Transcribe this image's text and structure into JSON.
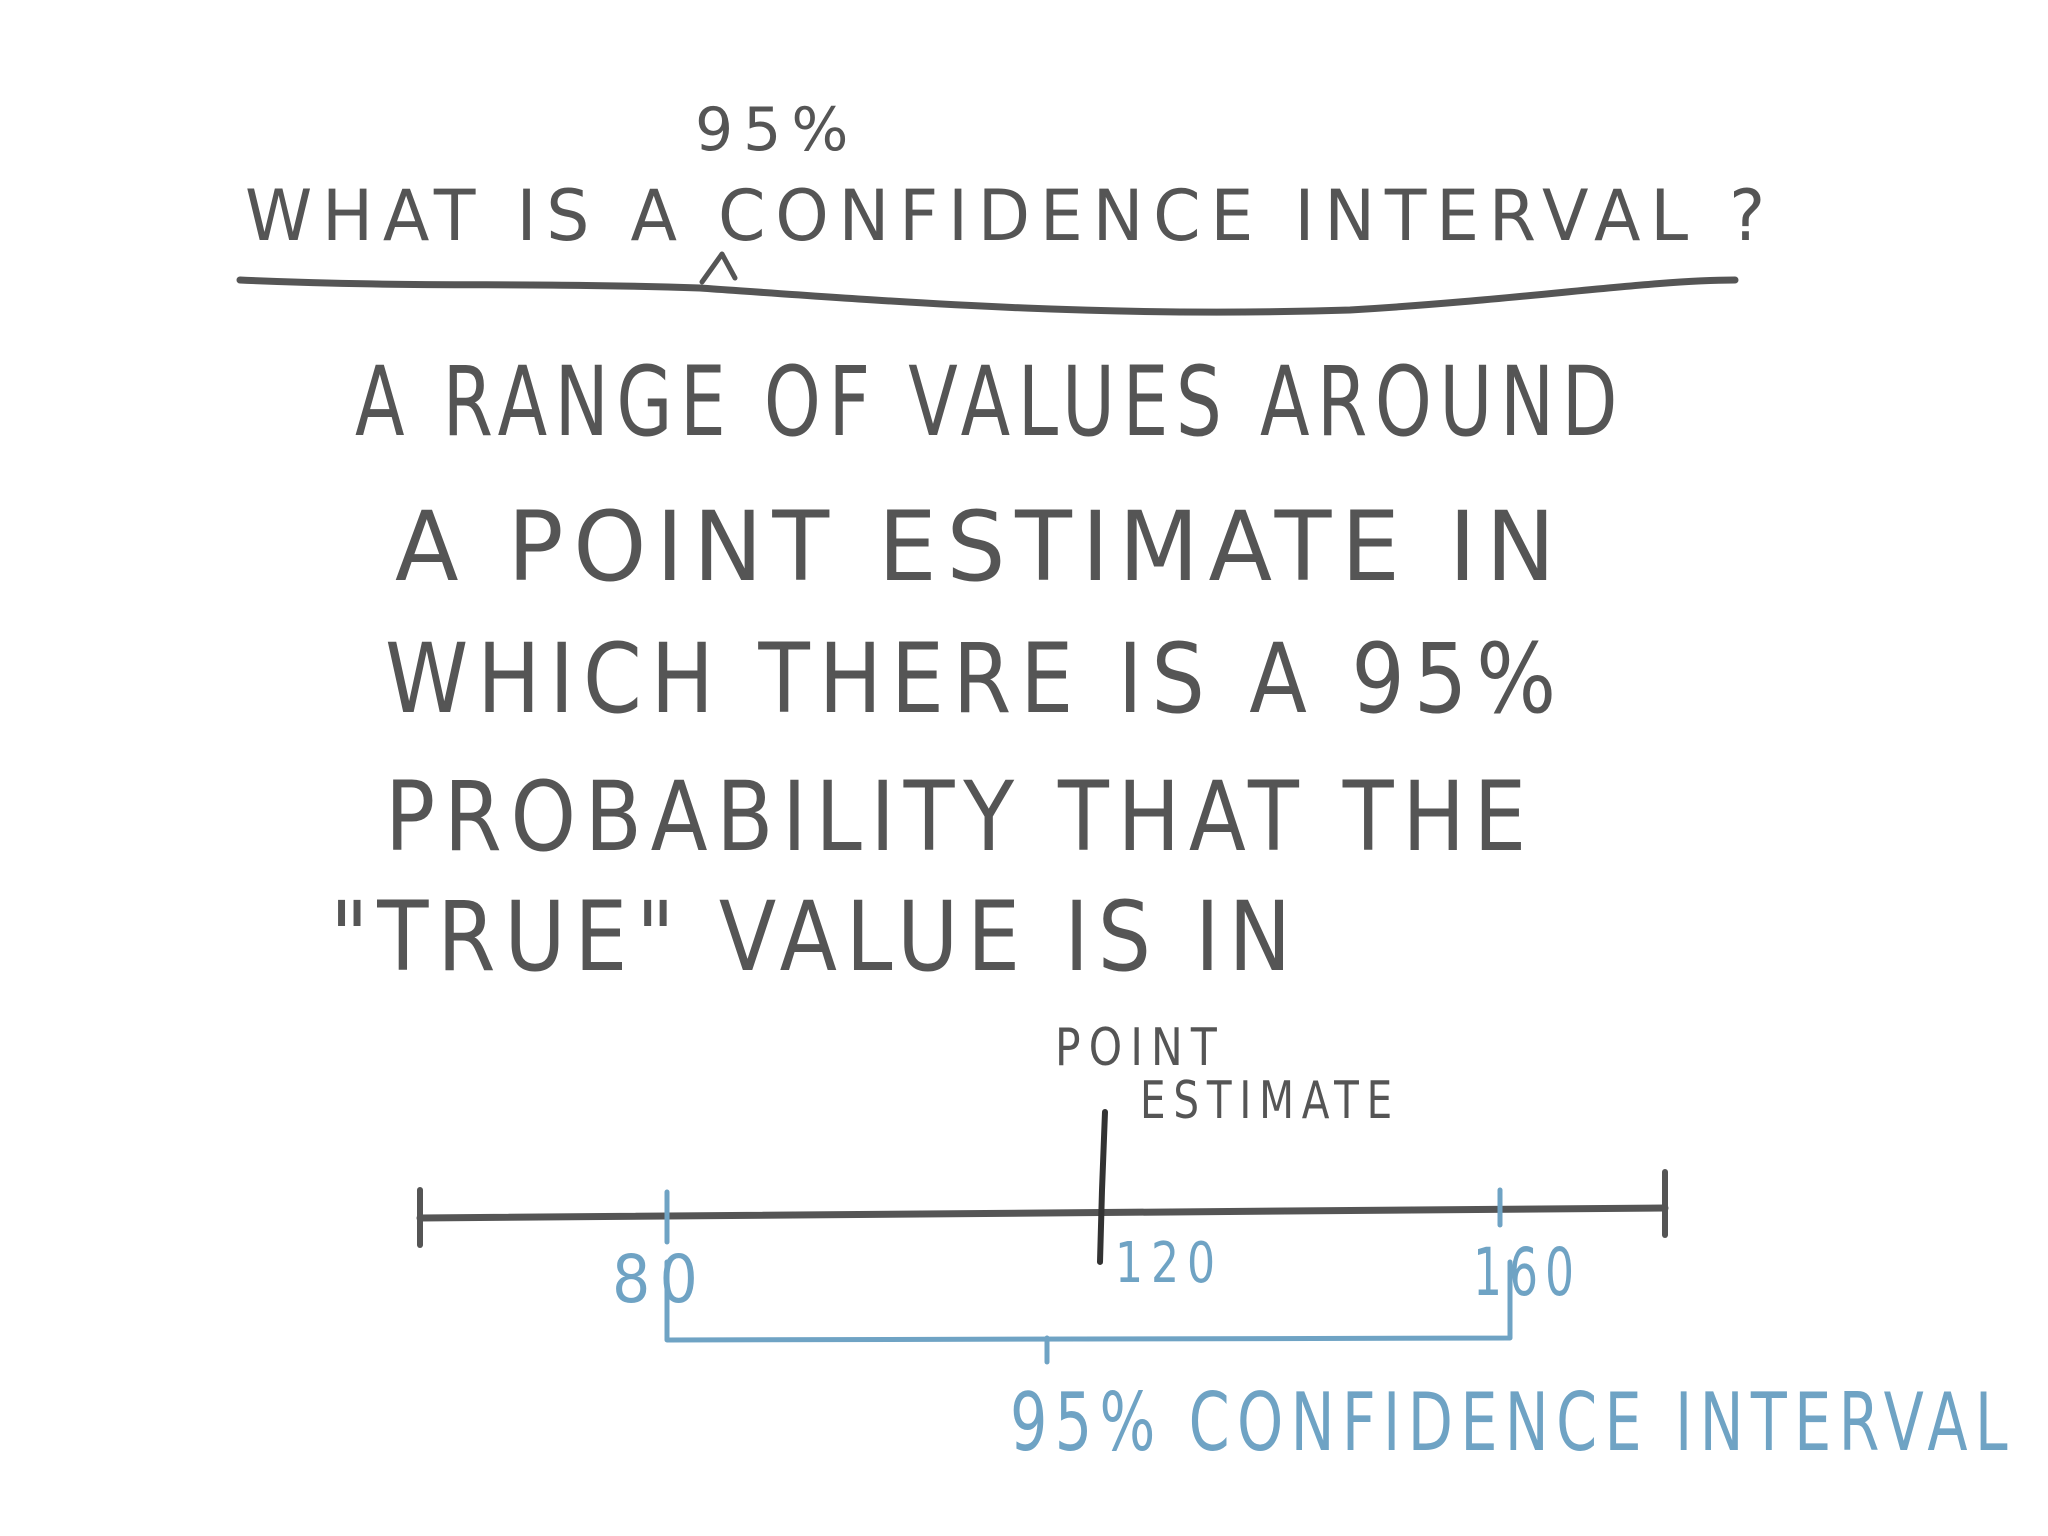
{
  "title": {
    "caret_insert": "95%",
    "text": "WHAT IS A CONFIDENCE INTERVAL ?"
  },
  "definition": {
    "lines": [
      "A RANGE OF VALUES AROUND",
      "A POINT ESTIMATE IN",
      "WHICH THERE IS A 95%",
      "PROBABILITY THAT THE",
      "\"TRUE\" VALUE IS IN"
    ]
  },
  "diagram": {
    "point_estimate_label_line1": "POINT",
    "point_estimate_label_line2": "ESTIMATE",
    "tick_labels": [
      "80",
      "120",
      "160"
    ],
    "interval_label": "95% CONFIDENCE INTERVAL",
    "interval_lower": 80,
    "interval_upper": 160,
    "point_estimate": 120,
    "colors": {
      "ink": "#555555",
      "interval": "#6fa3c4"
    }
  }
}
